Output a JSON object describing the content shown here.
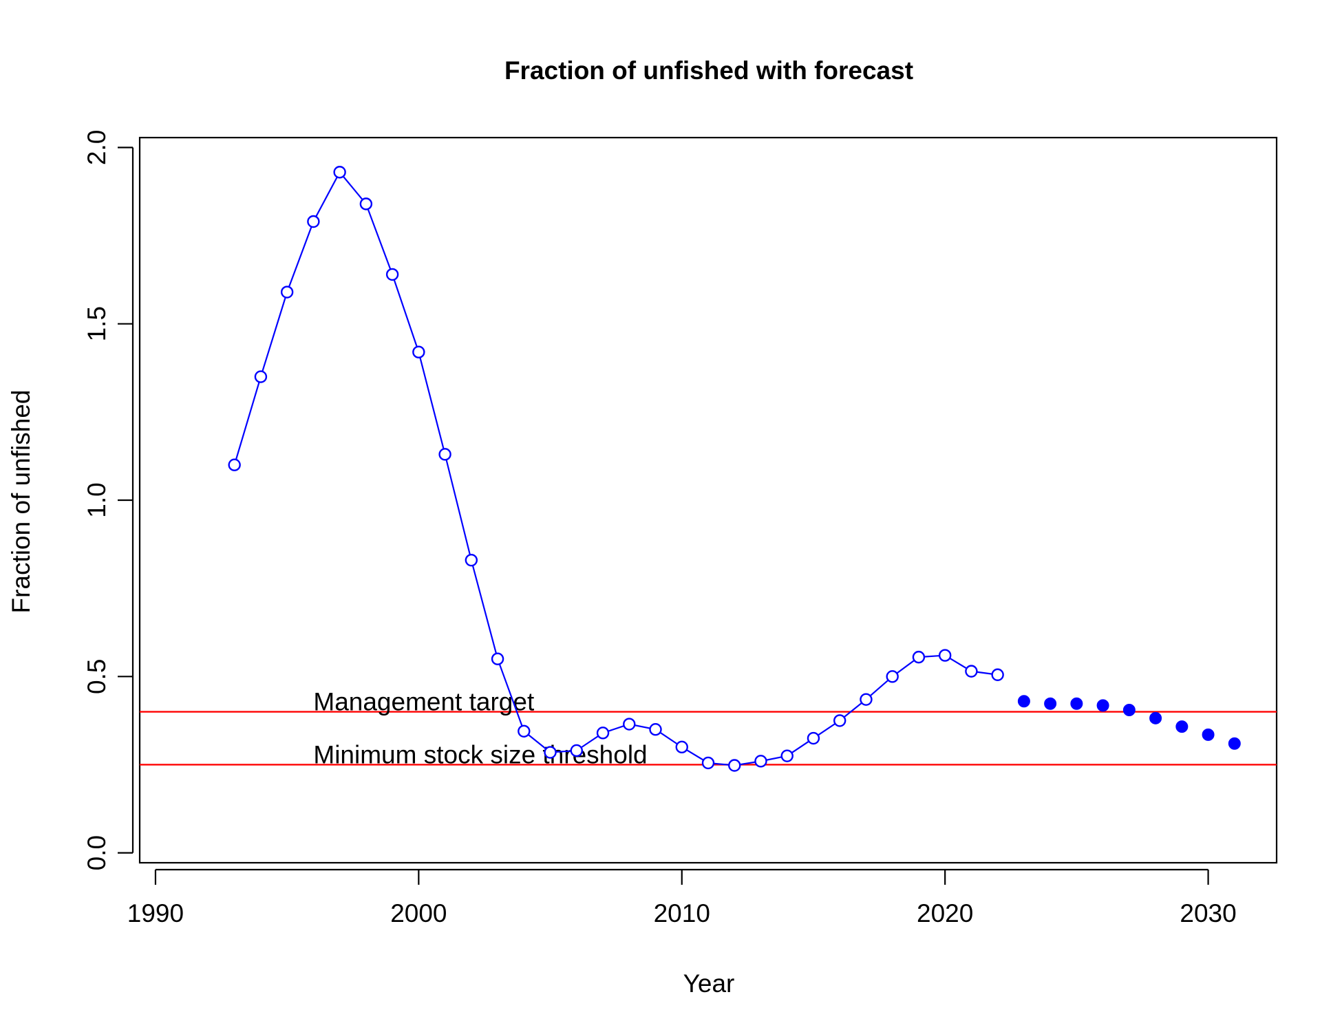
{
  "chart_data": {
    "type": "line",
    "title": "Fraction of unfished with forecast",
    "xlabel": "Year",
    "ylabel": "Fraction of unfished",
    "xlim": [
      1989.4,
      2032.6
    ],
    "ylim": [
      -0.028,
      2.028
    ],
    "x_ticks": [
      1990,
      2000,
      2010,
      2020,
      2030
    ],
    "y_ticks": [
      0.0,
      0.5,
      1.0,
      1.5,
      2.0
    ],
    "y_tick_labels": [
      "0.0",
      "0.5",
      "1.0",
      "1.5",
      "2.0"
    ],
    "grid": false,
    "legend": "none",
    "series": [
      {
        "style": "line-open-circles",
        "color": "#0000FF",
        "x": [
          1993,
          1994,
          1995,
          1996,
          1997,
          1998,
          1999,
          2000,
          2001,
          2002,
          2003,
          2004,
          2005,
          2006,
          2007,
          2008,
          2009,
          2010,
          2011,
          2012,
          2013,
          2014,
          2015,
          2016,
          2017,
          2018,
          2019,
          2020,
          2021,
          2022
        ],
        "y": [
          1.1,
          1.35,
          1.59,
          1.79,
          1.93,
          1.84,
          1.64,
          1.42,
          1.13,
          0.83,
          0.55,
          0.345,
          0.285,
          0.29,
          0.34,
          0.365,
          0.35,
          0.3,
          0.255,
          0.248,
          0.26,
          0.275,
          0.325,
          0.375,
          0.435,
          0.5,
          0.555,
          0.56,
          0.515,
          0.505
        ]
      },
      {
        "style": "filled-points",
        "color": "#0000FF",
        "x": [
          2023,
          2024,
          2025,
          2026,
          2027,
          2028,
          2029,
          2030,
          2031
        ],
        "y": [
          0.43,
          0.423,
          0.423,
          0.418,
          0.405,
          0.382,
          0.358,
          0.335,
          0.31
        ]
      }
    ],
    "reference_lines": [
      {
        "y": 0.4,
        "color": "#FF0000",
        "label": "Management target",
        "label_x": 1996
      },
      {
        "y": 0.25,
        "color": "#FF0000",
        "label": "Minimum stock size threshold",
        "label_x": 1996
      }
    ]
  }
}
